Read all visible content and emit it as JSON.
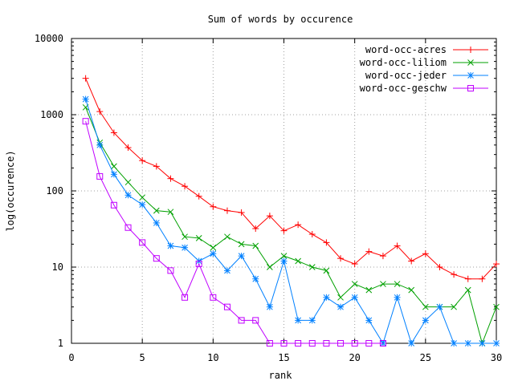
{
  "chart_data": {
    "type": "line",
    "title": "Sum of words by occurence",
    "xlabel": "rank",
    "ylabel": "log(occurence)",
    "xlim": [
      0,
      30
    ],
    "ylim": [
      1,
      10000
    ],
    "yscale": "log",
    "grid": true,
    "legend_position": "top-right",
    "x_ticks": [
      0,
      5,
      10,
      15,
      20,
      25,
      30
    ],
    "y_ticks": [
      1,
      10,
      100,
      1000,
      10000
    ],
    "x_tick_labels": [
      "0",
      "5",
      "10",
      "15",
      "20",
      "25",
      "30"
    ],
    "y_tick_labels": [
      "1",
      "10",
      "100",
      "1000",
      "10000"
    ],
    "series": [
      {
        "name": "word-occ-acres",
        "color": "#ff0000",
        "marker": "plus",
        "x": [
          1,
          2,
          3,
          4,
          5,
          6,
          7,
          8,
          9,
          10,
          11,
          12,
          13,
          14,
          15,
          16,
          17,
          18,
          19,
          20,
          21,
          22,
          23,
          24,
          25,
          26,
          27,
          28,
          29,
          30
        ],
        "values": [
          3000,
          1100,
          580,
          370,
          250,
          210,
          145,
          115,
          85,
          62,
          55,
          52,
          32,
          47,
          30,
          36,
          27,
          21,
          13,
          11,
          16,
          14,
          19,
          12,
          15,
          10,
          8,
          7,
          7,
          11
        ]
      },
      {
        "name": "word-occ-liliom",
        "color": "#00a000",
        "marker": "cross",
        "x": [
          1,
          2,
          3,
          4,
          5,
          6,
          7,
          8,
          9,
          10,
          11,
          12,
          13,
          14,
          15,
          16,
          17,
          18,
          19,
          20,
          21,
          22,
          23,
          24,
          25,
          26,
          27,
          28,
          29,
          30
        ],
        "values": [
          1250,
          430,
          210,
          130,
          82,
          55,
          53,
          25,
          24,
          18,
          25,
          20,
          19,
          10,
          14,
          12,
          10,
          9,
          4,
          6,
          5,
          6,
          6,
          5,
          3,
          3,
          3,
          5,
          1,
          3
        ]
      },
      {
        "name": "word-occ-jeder",
        "color": "#0080ff",
        "marker": "star",
        "x": [
          1,
          2,
          3,
          4,
          5,
          6,
          7,
          8,
          9,
          10,
          11,
          12,
          13,
          14,
          15,
          16,
          17,
          18,
          19,
          20,
          21,
          22,
          23,
          24,
          25,
          26,
          27,
          28,
          29,
          30
        ],
        "values": [
          1600,
          400,
          165,
          88,
          66,
          38,
          19,
          18,
          12,
          15,
          9,
          14,
          7,
          3,
          12,
          2,
          2,
          4,
          3,
          4,
          2,
          1,
          4,
          1,
          2,
          3,
          1,
          1,
          1,
          1
        ]
      },
      {
        "name": "word-occ-geschw",
        "color": "#c000ff",
        "marker": "square",
        "x": [
          1,
          2,
          3,
          4,
          5,
          6,
          7,
          8,
          9,
          10,
          11,
          12,
          13,
          14,
          15,
          16,
          17,
          18,
          19,
          20,
          21,
          22
        ],
        "values": [
          820,
          155,
          65,
          33,
          21,
          13,
          9,
          4,
          11,
          4,
          3,
          2,
          2,
          1,
          1,
          1,
          1,
          1,
          1,
          1,
          1,
          1
        ]
      }
    ]
  }
}
